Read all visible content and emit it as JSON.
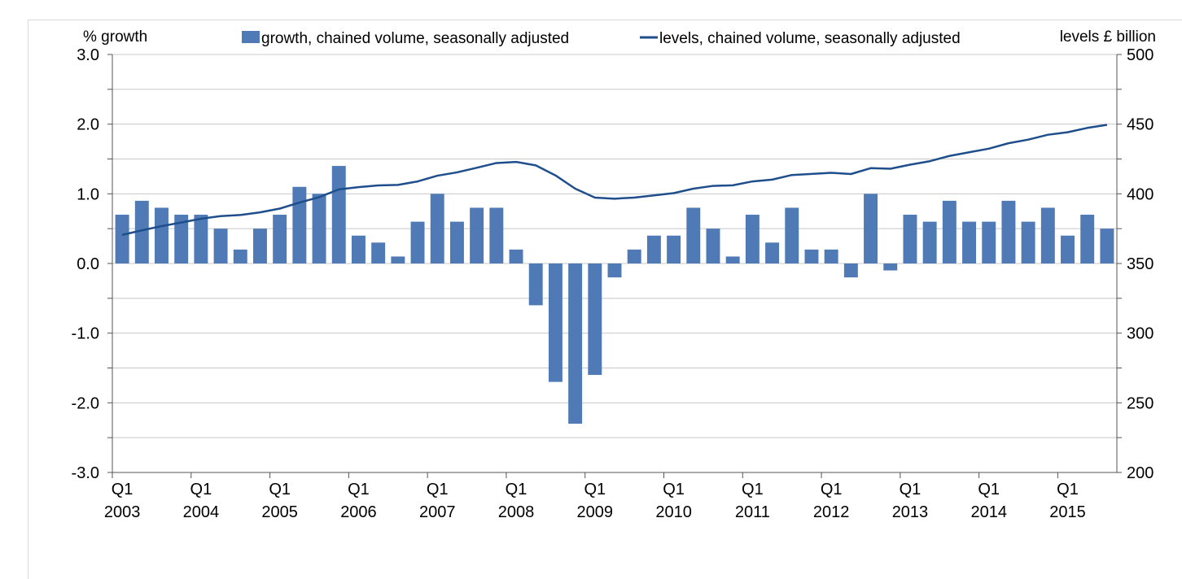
{
  "chart_data": {
    "type": "bar+line",
    "ylabel_left": "% growth",
    "ylabel_right": "levels £ billion",
    "ylim_left": [
      -3.0,
      3.0
    ],
    "ylim_right": [
      200,
      500
    ],
    "yticks_left": [
      "3.0",
      "2.0",
      "1.0",
      "0.0",
      "-1.0",
      "-2.0",
      "-3.0"
    ],
    "yticks_right": [
      "500",
      "450",
      "400",
      "350",
      "300",
      "250",
      "200"
    ],
    "grid": true,
    "legend_position": "top",
    "x_tick_labels": [
      [
        "Q1",
        "2003"
      ],
      [
        "Q1",
        "2004"
      ],
      [
        "Q1",
        "2005"
      ],
      [
        "Q1",
        "2006"
      ],
      [
        "Q1",
        "2007"
      ],
      [
        "Q1",
        "2008"
      ],
      [
        "Q1",
        "2009"
      ],
      [
        "Q1",
        "2010"
      ],
      [
        "Q1",
        "2011"
      ],
      [
        "Q1",
        "2012"
      ],
      [
        "Q1",
        "2013"
      ],
      [
        "Q1",
        "2014"
      ],
      [
        "Q1",
        "2015"
      ]
    ],
    "categories_start": "2003 Q1",
    "categories_end": "2015 Q3",
    "series": [
      {
        "name": "growth, chained volume, seasonally adjusted",
        "type": "bar",
        "axis": "left",
        "color": "#4f7ab6",
        "values": [
          0.7,
          0.9,
          0.8,
          0.7,
          0.7,
          0.5,
          0.2,
          0.5,
          0.7,
          1.1,
          1.0,
          1.4,
          0.4,
          0.3,
          0.1,
          0.6,
          1.0,
          0.6,
          0.8,
          0.8,
          0.2,
          -0.6,
          -1.7,
          -2.3,
          -1.6,
          -0.2,
          0.2,
          0.4,
          0.4,
          0.8,
          0.5,
          0.1,
          0.7,
          0.3,
          0.8,
          0.2,
          0.2,
          -0.2,
          1.0,
          -0.1,
          0.7,
          0.6,
          0.9,
          0.6,
          0.6,
          0.9,
          0.6,
          0.8,
          0.4,
          0.7,
          0.5
        ]
      },
      {
        "name": "levels, chained volume, seasonally adjusted",
        "type": "line",
        "axis": "right",
        "color": "#1f4e8c",
        "values": [
          370.5,
          373.8,
          376.8,
          379.4,
          382.1,
          384.0,
          384.8,
          386.7,
          389.4,
          393.7,
          397.6,
          403.2,
          404.8,
          406.0,
          406.4,
          408.9,
          413.0,
          415.4,
          418.7,
          422.1,
          422.9,
          420.4,
          413.2,
          403.7,
          397.3,
          396.5,
          397.3,
          398.9,
          400.5,
          403.7,
          405.7,
          406.1,
          408.9,
          410.2,
          413.5,
          414.3,
          415.1,
          414.2,
          418.4,
          418.0,
          420.9,
          423.4,
          427.2,
          429.8,
          432.4,
          436.3,
          438.9,
          442.4,
          444.2,
          447.3,
          449.5
        ]
      }
    ]
  }
}
